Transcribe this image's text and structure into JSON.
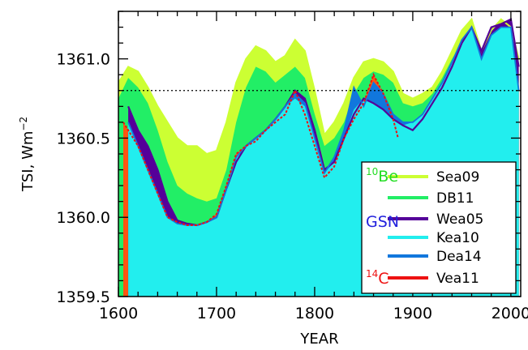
{
  "chart_data": {
    "type": "area",
    "xlabel": "YEAR",
    "ylabel": "TSI, Wm",
    "ylabel_sup": "−2",
    "xlim": [
      1600,
      2010
    ],
    "ylim": [
      1359.5,
      1361.3
    ],
    "x_ticks": [
      1600,
      1700,
      1800,
      1900,
      2000
    ],
    "x_tick_labels": [
      "1600",
      "1700",
      "1800",
      "1900",
      "2000"
    ],
    "y_ticks": [
      1359.5,
      1360.0,
      1360.5,
      1361.0
    ],
    "y_tick_labels": [
      "1359.5",
      "1360.0",
      "1360.5",
      "1361.0"
    ],
    "reference_line": 1360.8,
    "colors": {
      "Sea09": "#ccff33",
      "DB11": "#22ee66",
      "Wea05": "#550099",
      "Kea10": "#22eeee",
      "Dea14": "#1177dd",
      "Vea11": "#ff5511",
      "Vea11_line": "#ee1111",
      "group_10Be": "#22dd22",
      "group_GSN": "#2222dd",
      "group_14C": "#ee1111"
    },
    "legend": {
      "groups": [
        {
          "prefix": "10",
          "name": "Be",
          "color_key": "group_10Be"
        },
        {
          "prefix": "",
          "name": "GSN",
          "color_key": "group_GSN"
        },
        {
          "prefix": "14",
          "name": "C",
          "color_key": "group_14C"
        }
      ],
      "entries": [
        "Sea09",
        "DB11",
        "Wea05",
        "Kea10",
        "Dea14",
        "Vea11"
      ]
    },
    "series": [
      {
        "name": "Sea09",
        "x": [
          1600,
          1610,
          1620,
          1630,
          1640,
          1650,
          1660,
          1670,
          1680,
          1690,
          1700,
          1710,
          1720,
          1730,
          1740,
          1750,
          1760,
          1770,
          1780,
          1790,
          1800,
          1810,
          1820,
          1830,
          1840,
          1850,
          1860,
          1870,
          1880,
          1890,
          1900,
          1910,
          1920,
          1930,
          1940,
          1950,
          1960,
          1970,
          1980,
          1990,
          2000,
          2008
        ],
        "values": [
          1360.85,
          1360.95,
          1360.92,
          1360.82,
          1360.7,
          1360.6,
          1360.5,
          1360.45,
          1360.45,
          1360.4,
          1360.42,
          1360.6,
          1360.85,
          1361.0,
          1361.08,
          1361.05,
          1360.98,
          1361.02,
          1361.12,
          1361.05,
          1360.8,
          1360.52,
          1360.6,
          1360.72,
          1360.88,
          1360.98,
          1361.0,
          1360.98,
          1360.92,
          1360.78,
          1360.75,
          1360.78,
          1360.82,
          1360.92,
          1361.05,
          1361.18,
          1361.25,
          1361.05,
          1361.18,
          1361.25,
          1361.2,
          1361.0
        ]
      },
      {
        "name": "DB11",
        "x": [
          1600,
          1610,
          1620,
          1630,
          1640,
          1650,
          1660,
          1670,
          1680,
          1690,
          1700,
          1710,
          1720,
          1730,
          1740,
          1750,
          1760,
          1770,
          1780,
          1790,
          1800,
          1810,
          1820,
          1830,
          1840,
          1850,
          1860,
          1870,
          1880,
          1890,
          1900,
          1910,
          1920,
          1930,
          1940,
          1950,
          1960,
          1970,
          1980,
          1990,
          2000,
          2008
        ],
        "values": [
          1360.75,
          1360.88,
          1360.82,
          1360.72,
          1360.55,
          1360.35,
          1360.2,
          1360.15,
          1360.12,
          1360.1,
          1360.12,
          1360.3,
          1360.6,
          1360.82,
          1360.95,
          1360.92,
          1360.85,
          1360.9,
          1360.95,
          1360.88,
          1360.65,
          1360.45,
          1360.5,
          1360.6,
          1360.78,
          1360.88,
          1360.92,
          1360.9,
          1360.85,
          1360.72,
          1360.7,
          1360.72,
          1360.78,
          1360.88,
          1361.0,
          1361.1,
          1361.18,
          1361.0,
          1361.1,
          1361.22,
          1361.15,
          1360.9
        ]
      },
      {
        "name": "Wea05",
        "x": [
          1610,
          1620,
          1630,
          1640,
          1650,
          1660,
          1670,
          1680,
          1690,
          1700,
          1710,
          1720,
          1730,
          1740,
          1750,
          1760,
          1770,
          1780,
          1790,
          1800,
          1810,
          1820,
          1830,
          1840,
          1850,
          1860,
          1870,
          1880,
          1890,
          1900,
          1910,
          1920,
          1930,
          1940,
          1950,
          1960,
          1970,
          1980,
          1990,
          2000,
          2008
        ],
        "values": [
          1360.7,
          1360.55,
          1360.45,
          1360.3,
          1360.1,
          1359.98,
          1359.96,
          1359.95,
          1359.97,
          1360.0,
          1360.18,
          1360.35,
          1360.45,
          1360.5,
          1360.55,
          1360.62,
          1360.7,
          1360.8,
          1360.75,
          1360.55,
          1360.3,
          1360.35,
          1360.5,
          1360.65,
          1360.75,
          1360.72,
          1360.68,
          1360.62,
          1360.58,
          1360.55,
          1360.62,
          1360.72,
          1360.82,
          1360.95,
          1361.1,
          1361.2,
          1361.05,
          1361.2,
          1361.22,
          1361.25,
          1360.95
        ]
      },
      {
        "name": "Kea10",
        "x": [
          1610,
          1620,
          1630,
          1640,
          1650,
          1660,
          1670,
          1680,
          1690,
          1700,
          1710,
          1720,
          1730,
          1740,
          1750,
          1760,
          1770,
          1780,
          1790,
          1800,
          1810,
          1820,
          1830,
          1840,
          1850,
          1860,
          1870,
          1880,
          1890,
          1900,
          1910,
          1920,
          1930,
          1940,
          1950,
          1960,
          1970,
          1980,
          1990,
          2000,
          2008
        ],
        "values": [
          1360.6,
          1360.45,
          1360.3,
          1360.15,
          1360.0,
          1359.96,
          1359.95,
          1359.95,
          1359.97,
          1360.0,
          1360.18,
          1360.38,
          1360.45,
          1360.5,
          1360.55,
          1360.62,
          1360.7,
          1360.75,
          1360.7,
          1360.5,
          1360.28,
          1360.35,
          1360.5,
          1360.68,
          1360.75,
          1360.72,
          1360.68,
          1360.62,
          1360.58,
          1360.6,
          1360.65,
          1360.75,
          1360.85,
          1360.98,
          1361.12,
          1361.2,
          1361.0,
          1361.15,
          1361.2,
          1361.2,
          1360.8
        ]
      },
      {
        "name": "Dea14",
        "x": [
          1610,
          1620,
          1630,
          1640,
          1650,
          1660,
          1670,
          1680,
          1690,
          1700,
          1710,
          1720,
          1730,
          1740,
          1750,
          1760,
          1770,
          1780,
          1790,
          1800,
          1810,
          1820,
          1830,
          1840,
          1850,
          1860,
          1870,
          1880,
          1890,
          1900,
          1910,
          1920,
          1930,
          1940,
          1950,
          1960,
          1970,
          1980,
          1990,
          2000,
          2008
        ],
        "values": [
          1360.6,
          1360.45,
          1360.3,
          1360.15,
          1360.0,
          1359.96,
          1359.95,
          1359.95,
          1359.97,
          1360.0,
          1360.18,
          1360.38,
          1360.45,
          1360.5,
          1360.55,
          1360.62,
          1360.7,
          1360.78,
          1360.72,
          1360.5,
          1360.28,
          1360.38,
          1360.55,
          1360.82,
          1360.7,
          1360.85,
          1360.78,
          1360.65,
          1360.6,
          1360.6,
          1360.65,
          1360.75,
          1360.85,
          1360.98,
          1361.12,
          1361.2,
          1361.0,
          1361.15,
          1361.2,
          1361.2,
          1360.8
        ]
      },
      {
        "name": "Vea11",
        "x": [
          1605,
          1620,
          1630,
          1640,
          1650,
          1660,
          1670,
          1680,
          1690,
          1700,
          1710,
          1720,
          1730,
          1740,
          1750,
          1760,
          1770,
          1780,
          1790,
          1800,
          1810,
          1820,
          1830,
          1840,
          1850,
          1860,
          1870,
          1880,
          1885
        ],
        "values": [
          1360.6,
          1360.45,
          1360.3,
          1360.15,
          1360.0,
          1359.97,
          1359.95,
          1359.95,
          1359.97,
          1360.02,
          1360.2,
          1360.4,
          1360.45,
          1360.48,
          1360.55,
          1360.6,
          1360.65,
          1360.8,
          1360.65,
          1360.45,
          1360.25,
          1360.32,
          1360.5,
          1360.62,
          1360.72,
          1360.9,
          1360.78,
          1360.62,
          1360.5
        ]
      }
    ]
  }
}
